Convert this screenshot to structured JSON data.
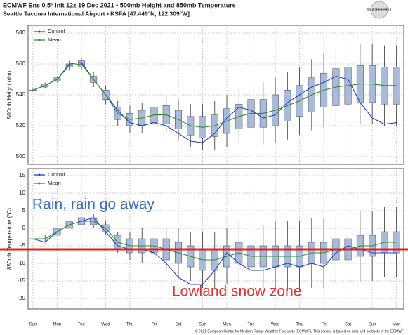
{
  "header": {
    "title": "ECMWF Ens 0.5° Init 12z 19 Dec 2021 • 500mb Height and 850mb Temperature",
    "subtitle": "Seattle Tacoma International Airport • KSFA [47.449°N, 122.309°W]",
    "logo": "WEATHERBELL"
  },
  "footer": "© 2021 European Centre for Medium Range Weather Forecasts (ECMWF). This service is based on data and products of the ECMWF",
  "chart_data": [
    {
      "type": "box",
      "y_label": "500mb Height (dm)",
      "grid": true,
      "box_color": "#a9bbd9",
      "x": [
        0,
        0.5,
        1,
        1.5,
        2,
        2.5,
        3,
        3.5,
        4,
        4.5,
        5,
        5.5,
        6,
        6.5,
        7,
        7.5,
        8,
        8.5,
        9,
        9.5,
        10,
        10.5,
        11,
        11.5,
        12,
        12.5,
        13,
        13.5,
        14,
        14.5,
        15
      ],
      "xlim": [
        -0.2,
        15.3
      ],
      "xticks": [
        0,
        1,
        2,
        3,
        4,
        5,
        6,
        7,
        8,
        9,
        10,
        11,
        12,
        13,
        14,
        15
      ],
      "ylim": [
        495,
        585
      ],
      "yticks": [
        500,
        520,
        540,
        560,
        580
      ],
      "boxes": {
        "q1": [
          543,
          545,
          549,
          558,
          558,
          548,
          537,
          524,
          520,
          520,
          522,
          521,
          518,
          514,
          512,
          513,
          515,
          518,
          519,
          519,
          520,
          523,
          526,
          529,
          532,
          533,
          534,
          535,
          535,
          534,
          534
        ],
        "q3": [
          543,
          547,
          551,
          560,
          562,
          552,
          543,
          532,
          528,
          530,
          532,
          533,
          530,
          526,
          526,
          527,
          531,
          534,
          537,
          537,
          540,
          543,
          546,
          551,
          554,
          557,
          558,
          559,
          559,
          558,
          558
        ],
        "low": [
          542,
          544,
          548,
          556,
          556,
          545,
          534,
          520,
          515,
          515,
          516,
          515,
          511,
          506,
          504,
          504,
          506,
          508,
          509,
          508,
          509,
          511,
          514,
          517,
          519,
          520,
          521,
          521,
          521,
          520,
          520
        ],
        "high": [
          544,
          548,
          552,
          562,
          564,
          555,
          546,
          536,
          533,
          535,
          538,
          539,
          537,
          534,
          534,
          536,
          540,
          544,
          547,
          548,
          551,
          555,
          558,
          563,
          567,
          570,
          571,
          573,
          573,
          572,
          572
        ]
      },
      "series": [
        {
          "name": "Control",
          "color": "#2040d0",
          "values": [
            543,
            546,
            550,
            560,
            561,
            550,
            540,
            530,
            522,
            520,
            522,
            520,
            515,
            510,
            509,
            515,
            525,
            532,
            530,
            525,
            527,
            535,
            540,
            545,
            548,
            552,
            550,
            535,
            525,
            521,
            522
          ]
        },
        {
          "name": "Mean",
          "color": "#2e8b2e",
          "values": [
            543,
            546,
            550,
            559,
            560,
            550,
            540,
            528,
            524,
            525,
            527,
            527,
            524,
            520,
            519,
            520,
            523,
            526,
            528,
            528,
            530,
            533,
            536,
            540,
            543,
            545,
            546,
            547,
            547,
            546,
            546
          ]
        }
      ]
    },
    {
      "type": "box",
      "y_label": "850mb Temperature (°C)",
      "grid": true,
      "box_color": "#a9bbd9",
      "x": [
        0,
        0.5,
        1,
        1.5,
        2,
        2.5,
        3,
        3.5,
        4,
        4.5,
        5,
        5.5,
        6,
        6.5,
        7,
        7.5,
        8,
        8.5,
        9,
        9.5,
        10,
        10.5,
        11,
        11.5,
        12,
        12.5,
        13,
        13.5,
        14,
        14.5,
        15
      ],
      "xlim": [
        -0.2,
        15.3
      ],
      "xticks": [
        {
          "value": 0,
          "label": "Sun"
        },
        {
          "value": 1,
          "label": "Mon"
        },
        {
          "value": 2,
          "label": "Tue"
        },
        {
          "value": 3,
          "label": "Wed"
        },
        {
          "value": 4,
          "label": "Thu"
        },
        {
          "value": 5,
          "label": "Fri"
        },
        {
          "value": 6,
          "label": "Sat"
        },
        {
          "value": 7,
          "label": "Sun"
        },
        {
          "value": 8,
          "label": "Mon"
        },
        {
          "value": 9,
          "label": "Tue"
        },
        {
          "value": 10,
          "label": "Wed"
        },
        {
          "value": 11,
          "label": "Thu"
        },
        {
          "value": 12,
          "label": "Fri"
        },
        {
          "value": 13,
          "label": "Sat"
        },
        {
          "value": 14,
          "label": "Sun"
        },
        {
          "value": 15,
          "label": "Mon"
        }
      ],
      "ylim": [
        -23,
        17
      ],
      "yticks": [
        15,
        10,
        5,
        0,
        -5,
        -10,
        -15,
        -20
      ],
      "boxes": {
        "q1": [
          -3,
          -3,
          -2,
          0,
          1,
          1,
          -1,
          -6,
          -7,
          -7,
          -7,
          -9,
          -10,
          -11,
          -12,
          -12,
          -11,
          -10,
          -11,
          -11,
          -11,
          -11,
          -11,
          -10,
          -10,
          -9,
          -9,
          -8,
          -8,
          -7,
          -7
        ],
        "q3": [
          -3,
          -3,
          0,
          2,
          3,
          3,
          1,
          -2,
          -3,
          -3,
          -3,
          -3,
          -4,
          -5,
          -6,
          -6,
          -5,
          -4,
          -5,
          -5,
          -5,
          -5,
          -5,
          -4,
          -4,
          -3,
          -3,
          -2,
          -2,
          -1,
          -1
        ],
        "low": [
          -3,
          -4,
          -2,
          0,
          1,
          0,
          -2,
          -7,
          -9,
          -10,
          -11,
          -12,
          -14,
          -15,
          -17,
          -17,
          -16,
          -16,
          -17,
          -17,
          -18,
          -18,
          -18,
          -17,
          -17,
          -16,
          -16,
          -15,
          -15,
          -14,
          -14
        ],
        "high": [
          -3,
          -2,
          0,
          2,
          3,
          4,
          2,
          -1,
          -1,
          0,
          1,
          0,
          0,
          -1,
          -1,
          -1,
          0,
          2,
          1,
          1,
          2,
          2,
          2,
          3,
          3,
          4,
          4,
          5,
          5,
          6,
          6
        ]
      },
      "series": [
        {
          "name": "Control",
          "color": "#2040d0",
          "values": [
            -3,
            -4,
            -1,
            1,
            2,
            3,
            -1,
            -5,
            -6,
            -6,
            -7,
            -10,
            -14,
            -16,
            -16,
            -12,
            -7,
            -10,
            -12,
            -12,
            -11,
            -10,
            -11,
            -10,
            -11,
            -7,
            -5,
            -6,
            -7,
            -7,
            -7
          ]
        },
        {
          "name": "Mean",
          "color": "#2e8b2e",
          "values": [
            -3,
            -3,
            -1,
            1,
            2,
            2,
            0,
            -4,
            -5,
            -5,
            -5,
            -6,
            -7,
            -8,
            -9,
            -9,
            -8,
            -7,
            -8,
            -8,
            -8,
            -8,
            -8,
            -7,
            -7,
            -6,
            -6,
            -5,
            -5,
            -4,
            -4
          ]
        }
      ],
      "threshold_line": {
        "value": -6,
        "color": "#e02020"
      },
      "annotations": [
        {
          "text": "Rain, rain go away",
          "color": "#3a6fc4"
        },
        {
          "text": "Lowland snow zone",
          "color": "#e03030"
        }
      ]
    }
  ]
}
